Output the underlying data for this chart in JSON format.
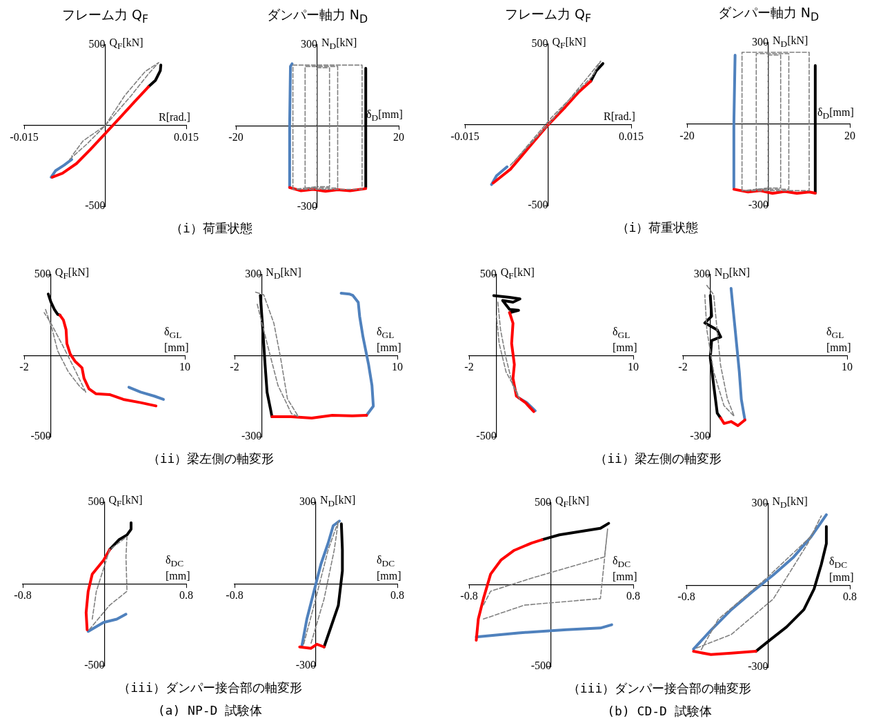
{
  "chart_data": [
    {
      "type": "line",
      "title": "フレーム力 Q$_{F}$",
      "xlabel": "R[rad.]",
      "ylabel": "Q$_{F}$[kN]",
      "xlim": [
        -0.015,
        0.015
      ],
      "ylim": [
        -500,
        500
      ],
      "xticks": [
        -0.015,
        0.015
      ],
      "yticks": [
        -500,
        500
      ],
      "annotations": [
        "（i）荷重状態"
      ],
      "series": [
        {
          "color": "#808080",
          "line_style": "dashed",
          "x": [
            -0.0066,
            -0.0034,
            0,
            0.0036,
            0.0074,
            0.0099,
            0.008,
            0.0048,
            0,
            -0.0041,
            -0.0062
          ],
          "values": [
            -210,
            -115,
            0,
            185,
            335,
            390,
            320,
            185,
            0,
            -95,
            -190
          ]
        },
        {
          "color": "#ff0000",
          "line_style": "solid",
          "x": [
            -0.0098,
            -0.0079,
            -0.0053,
            -0.0028,
            0,
            0.0029,
            0.0055,
            0.008
          ],
          "values": [
            -320,
            -295,
            -235,
            -150,
            -50,
            55,
            150,
            240
          ]
        },
        {
          "color": "#000000",
          "line_style": "solid",
          "x": [
            0.008,
            0.0093,
            0.0102,
            0.0103
          ],
          "values": [
            240,
            280,
            340,
            375
          ]
        },
        {
          "color": "#4f81bd",
          "line_style": "solid",
          "x": [
            -0.01,
            -0.0092,
            -0.0076,
            -0.0062
          ],
          "values": [
            -320,
            -280,
            -245,
            -210
          ]
        }
      ]
    },
    {
      "type": "line",
      "title": "ダンパー軸力 N$_{D}$",
      "xlabel": "δ$_{D}$[mm]",
      "ylabel": "N$_{D}$[kN]",
      "xlim": [
        -20,
        20
      ],
      "ylim": [
        -300,
        300
      ],
      "xticks": [
        -20,
        20
      ],
      "yticks": [
        -300,
        300
      ],
      "series": [
        {
          "color": "#808080",
          "line_style": "dashed",
          "x": [
            -6,
            -6,
            11,
            11,
            -6,
            -3,
            -3,
            5,
            5,
            -3,
            0,
            0,
            3,
            3,
            0
          ],
          "values": [
            -235,
            225,
            225,
            -235,
            -235,
            -230,
            220,
            220,
            -230,
            -230,
            -225,
            215,
            215,
            -225,
            -225
          ]
        },
        {
          "color": "#ff0000",
          "line_style": "solid",
          "x": [
            -6.8,
            -4,
            -1,
            2,
            5,
            8,
            11.9
          ],
          "values": [
            -228,
            -240,
            -235,
            -242,
            -236,
            -240,
            -232
          ]
        },
        {
          "color": "#000000",
          "line_style": "solid",
          "x": [
            11.9,
            11.9,
            11.9
          ],
          "values": [
            -228,
            0,
            213
          ]
        },
        {
          "color": "#4f81bd",
          "line_style": "solid",
          "x": [
            -6.8,
            -6.8,
            -6.6,
            -6.2
          ],
          "values": [
            -228,
            0,
            220,
            230
          ]
        }
      ]
    },
    {
      "type": "line",
      "title": "フレーム力 Q$_{F}$",
      "xlabel": "R[rad.]",
      "ylabel": "Q$_{F}$[kN]",
      "xlim": [
        -0.015,
        0.015
      ],
      "ylim": [
        -500,
        500
      ],
      "xticks": [
        -0.015,
        0.015
      ],
      "yticks": [
        -500,
        500
      ],
      "annotations": [
        "（i）荷重状態"
      ],
      "series": [
        {
          "color": "#808080",
          "line_style": "dashed",
          "x": [
            -0.0068,
            0,
            0.0068,
            0.0095,
            0.0081,
            0.0006,
            -0.0062
          ],
          "values": [
            -250,
            0,
            280,
            395,
            305,
            45,
            -230
          ]
        },
        {
          "color": "#ff0000",
          "line_style": "solid",
          "x": [
            -0.0099,
            -0.0068,
            -0.0031,
            0,
            0.0031,
            0.0056,
            0.0077
          ],
          "values": [
            -360,
            -275,
            -125,
            0,
            110,
            205,
            270
          ]
        },
        {
          "color": "#000000",
          "line_style": "solid",
          "x": [
            0.0077,
            0.0087,
            0.0099
          ],
          "values": [
            270,
            335,
            380
          ]
        },
        {
          "color": "#4f81bd",
          "line_style": "solid",
          "x": [
            -0.0102,
            -0.0093,
            -0.0074
          ],
          "values": [
            -370,
            -315,
            -260
          ]
        }
      ]
    },
    {
      "type": "line",
      "title": "ダンパー軸力 N$_{D}$",
      "xlabel": "δ$_{D}$[mm]",
      "ylabel": "N$_{D}$[kN]",
      "xlim": [
        -20,
        20
      ],
      "ylim": [
        -300,
        300
      ],
      "xticks": [
        -20,
        20
      ],
      "yticks": [
        -300,
        300
      ],
      "series": [
        {
          "color": "#808080",
          "line_style": "dashed",
          "x": [
            -6.5,
            -6.5,
            10,
            10,
            -6.5,
            -3,
            -3,
            5,
            5,
            -3,
            0,
            0,
            3,
            3,
            0
          ],
          "values": [
            -245,
            265,
            265,
            -245,
            -245,
            -240,
            260,
            260,
            -240,
            -240,
            -235,
            255,
            255,
            -235,
            -235
          ]
        },
        {
          "color": "#ff0000",
          "line_style": "solid",
          "x": [
            -8.5,
            -5,
            -2,
            1,
            4,
            7,
            10,
            11.5
          ],
          "values": [
            -240,
            -250,
            -245,
            -255,
            -248,
            -255,
            -250,
            -254
          ]
        },
        {
          "color": "#000000",
          "line_style": "solid",
          "x": [
            11.5,
            11.5,
            11.5
          ],
          "values": [
            -254,
            0,
            216
          ]
        },
        {
          "color": "#4f81bd",
          "line_style": "solid",
          "x": [
            -8.5,
            -8.5,
            -8.2
          ],
          "values": [
            -234,
            0,
            254
          ]
        }
      ]
    },
    {
      "type": "line",
      "xlabel": "δ$_{GL}$\n[mm]",
      "ylabel": "Q$_{F}$[kN]",
      "xlim": [
        -2,
        10
      ],
      "ylim": [
        -500,
        500
      ],
      "xticks": [
        -2,
        10
      ],
      "yticks": [
        -500,
        500
      ],
      "annotations": [
        "（ii）梁左側の軸変形"
      ],
      "series": [
        {
          "color": "#808080",
          "line_style": "dashed",
          "x": [
            -0.4,
            0.1,
            0.5,
            1.3,
            2.1,
            2.6,
            1.6,
            0.8,
            0,
            -0.5
          ],
          "values": [
            285,
            160,
            30,
            -100,
            -185,
            -225,
            -55,
            75,
            200,
            265
          ]
        },
        {
          "color": "#ff0000",
          "line_style": "solid",
          "x": [
            0.67,
            0.93,
            1.13,
            1.19,
            1.44,
            1.8,
            2.32,
            2.47,
            2.84,
            3.35,
            4.38,
            5.41,
            6.7,
            7.84
          ],
          "values": [
            250,
            220,
            160,
            75,
            10,
            -35,
            -75,
            -140,
            -205,
            -235,
            -240,
            -270,
            -290,
            -310
          ]
        },
        {
          "color": "#000000",
          "line_style": "solid",
          "x": [
            -0.2,
            0,
            0.26,
            0.5,
            0.67
          ],
          "values": [
            380,
            330,
            285,
            255,
            250
          ]
        },
        {
          "color": "#4f81bd",
          "line_style": "solid",
          "x": [
            5.82,
            6.7,
            7.73,
            8.4
          ],
          "values": [
            -195,
            -225,
            -250,
            -270
          ]
        }
      ]
    },
    {
      "type": "line",
      "xlabel": "δ$_{GL}$\n[mm]",
      "ylabel": "N$_{D}$[kN]",
      "xlim": [
        -2,
        10
      ],
      "ylim": [
        -300,
        300
      ],
      "xticks": [
        -2,
        10
      ],
      "yticks": [
        -300,
        300
      ],
      "series": [
        {
          "color": "#808080",
          "line_style": "dashed",
          "x": [
            -0.45,
            0.15,
            0.9,
            1.4,
            1.9,
            2.7,
            2.2,
            1.2,
            0.4,
            -0.35
          ],
          "values": [
            235,
            225,
            120,
            -10,
            -160,
            -225,
            -215,
            -110,
            45,
            195
          ]
        },
        {
          "color": "#ff0000",
          "line_style": "solid",
          "x": [
            0.76,
            2.17,
            3.69,
            5.2,
            6.72,
            7.73
          ],
          "values": [
            -226,
            -226,
            -231,
            -221,
            -223,
            -221
          ]
        },
        {
          "color": "#000000",
          "line_style": "solid",
          "x": [
            -0.1,
            0.05,
            0.25,
            0.4,
            0.66,
            0.76
          ],
          "values": [
            223,
            121,
            -33,
            -136,
            -200,
            -226
          ]
        },
        {
          "color": "#4f81bd",
          "line_style": "solid",
          "x": [
            7.73,
            8.23,
            8.13,
            7.88,
            7.47,
            7.22,
            7.12,
            6.72,
            6.46,
            5.86
          ],
          "values": [
            -221,
            -187,
            -110,
            -33,
            69,
            146,
            197,
            223,
            228,
            231
          ]
        }
      ]
    },
    {
      "type": "line",
      "xlabel": "δ$_{GL}$\n[mm]",
      "ylabel": "Q$_{F}$[kN]",
      "xlim": [
        -2,
        10
      ],
      "ylim": [
        -500,
        500
      ],
      "xticks": [
        -2,
        10
      ],
      "yticks": [
        -500,
        500
      ],
      "annotations": [
        "（ii）梁左側の軸変形"
      ],
      "series": [
        {
          "color": "#808080",
          "line_style": "dashed",
          "x": [
            0.1,
            0.3,
            0.7,
            1.2,
            1.7,
            1.5,
            0.7,
            0.2,
            0
          ],
          "values": [
            330,
            160,
            -15,
            -185,
            -270,
            -225,
            -100,
            75,
            245
          ]
        },
        {
          "color": "#ff0000",
          "line_style": "solid",
          "x": [
            0.96,
            1.21,
            1.11,
            1.31,
            1.21,
            1.46,
            2.12,
            2.73
          ],
          "values": [
            265,
            200,
            75,
            -55,
            -140,
            -250,
            -290,
            -345
          ]
        },
        {
          "color": "#000000",
          "line_style": "solid",
          "x": [
            -0.2,
            0.96,
            1.72,
            1.21,
            0.45,
            0.96,
            1.62,
            0.96
          ],
          "values": [
            370,
            360,
            350,
            330,
            340,
            285,
            280,
            265
          ]
        },
        {
          "color": "#4f81bd",
          "line_style": "solid",
          "x": [
            1.62,
            2.22,
            2.83
          ],
          "values": [
            -260,
            -290,
            -340
          ]
        }
      ]
    },
    {
      "type": "line",
      "xlabel": "δ$_{GL}$\n[mm]",
      "ylabel": "N$_{D}$[kN]",
      "xlim": [
        -2,
        10
      ],
      "ylim": [
        -300,
        300
      ],
      "xticks": [
        -2,
        10
      ],
      "yticks": [
        -300,
        300
      ],
      "series": [
        {
          "color": "#808080",
          "line_style": "dashed",
          "x": [
            -0.25,
            0.25,
            0.5,
            0.75,
            1.25,
            1.75,
            1,
            0.25,
            -0.25,
            -0.4
          ],
          "values": [
            260,
            225,
            95,
            -35,
            -160,
            -225,
            -185,
            -60,
            95,
            225
          ]
        },
        {
          "color": "#ff0000",
          "line_style": "solid",
          "x": [
            0.76,
            1.01,
            1.52,
            2.02,
            2.53
          ],
          "values": [
            -231,
            -251,
            -244,
            -259,
            -238
          ]
        },
        {
          "color": "#000000",
          "line_style": "solid",
          "x": [
            0,
            0.1,
            -0.4,
            0.51,
            0.76,
            0.1,
            0,
            0.25,
            0.51,
            0.76
          ],
          "values": [
            223,
            146,
            121,
            95,
            69,
            56,
            -8,
            -110,
            -213,
            -231
          ]
        },
        {
          "color": "#4f81bd",
          "line_style": "solid",
          "x": [
            2.53,
            2.27,
            2.12,
            1.92,
            1.77,
            1.62,
            1.52
          ],
          "values": [
            -238,
            -162,
            -59,
            44,
            121,
            197,
            249
          ]
        }
      ]
    },
    {
      "type": "line",
      "xlabel": "δ$_{DC}$\n[mm]",
      "ylabel": "Q$_{F}$[kN]",
      "xlim": [
        -0.8,
        0.8
      ],
      "ylim": [
        -500,
        500
      ],
      "xticks": [
        -0.8,
        0.8
      ],
      "yticks": [
        -500,
        500
      ],
      "annotations": [
        "（iii）ダンパー接合部の軸変形",
        "(a) NP-D 試験体"
      ],
      "series": [
        {
          "color": "#808080",
          "line_style": "dashed",
          "x": [
            -0.15,
            0.05,
            0.22,
            0.21,
            0.22,
            0.05,
            -0.08,
            -0.12
          ],
          "values": [
            -280,
            -130,
            -45,
            165,
            290,
            210,
            -45,
            -215
          ]
        },
        {
          "color": "#ff0000",
          "line_style": "solid",
          "x": [
            0.05,
            -0.01,
            -0.12,
            -0.16,
            -0.18,
            -0.17
          ],
          "values": [
            210,
            145,
            60,
            -45,
            -175,
            -280
          ]
        },
        {
          "color": "#000000",
          "line_style": "solid",
          "x": [
            0.05,
            0.14,
            0.22,
            0.26,
            0.26
          ],
          "values": [
            210,
            270,
            300,
            335,
            375
          ]
        },
        {
          "color": "#4f81bd",
          "line_style": "solid",
          "x": [
            -0.16,
            -0.01,
            0.12,
            0.21
          ],
          "values": [
            -290,
            -235,
            -215,
            -185
          ]
        }
      ]
    },
    {
      "type": "line",
      "xlabel": "δ$_{DC}$\n[mm]",
      "ylabel": "N$_{D}$[kN]",
      "xlim": [
        -0.8,
        0.8
      ],
      "ylim": [
        -300,
        300
      ],
      "xticks": [
        -0.8,
        0.8
      ],
      "yticks": [
        -300,
        300
      ],
      "series": [
        {
          "color": "#808080",
          "line_style": "dashed",
          "x": [
            -0.12,
            -0.02,
            0.12,
            0.22,
            0.18,
            0.08,
            -0.05
          ],
          "values": [
            -220,
            -80,
            125,
            230,
            125,
            -55,
            -220
          ]
        },
        {
          "color": "#ff0000",
          "line_style": "solid",
          "x": [
            -0.16,
            -0.05,
            0.01,
            0.08
          ],
          "values": [
            -231,
            -236,
            -221,
            -231
          ]
        },
        {
          "color": "#000000",
          "line_style": "solid",
          "x": [
            0.25,
            0.26,
            0.26,
            0.22,
            0.15,
            0.08
          ],
          "values": [
            221,
            125,
            48,
            -79,
            -155,
            -231
          ]
        },
        {
          "color": "#4f81bd",
          "line_style": "solid",
          "x": [
            -0.14,
            -0.09,
            -0.02,
            0.05,
            0.12,
            0.17,
            0.23
          ],
          "values": [
            -231,
            -130,
            -28,
            74,
            150,
            214,
            231
          ]
        }
      ]
    },
    {
      "type": "line",
      "xlabel": "δ$_{DC}$\n[mm]",
      "ylabel": "Q$_{F}$[kN]",
      "xlim": [
        -0.8,
        0.8
      ],
      "ylim": [
        -500,
        500
      ],
      "xticks": [
        -0.8,
        0.8
      ],
      "yticks": [
        -500,
        500
      ],
      "annotations": [
        "（iii）ダンパー接合部の軸変形",
        "(b) CD-D 試験体"
      ],
      "series": [
        {
          "color": "#808080",
          "line_style": "dashed",
          "x": [
            -0.66,
            -0.26,
            0.48,
            0.55,
            0.52,
            -0.19,
            -0.59,
            -0.66
          ],
          "values": [
            -210,
            -125,
            -85,
            340,
            170,
            40,
            -40,
            -125
          ]
        },
        {
          "color": "#ff0000",
          "line_style": "solid",
          "x": [
            -0.73,
            -0.71,
            -0.66,
            -0.59,
            -0.49,
            -0.36,
            -0.19,
            -0.09
          ],
          "values": [
            -340,
            -210,
            -85,
            65,
            150,
            210,
            255,
            275
          ]
        },
        {
          "color": "#000000",
          "line_style": "solid",
          "x": [
            -0.09,
            0.08,
            0.28,
            0.48,
            0.56
          ],
          "values": [
            275,
            305,
            325,
            345,
            375
          ]
        },
        {
          "color": "#4f81bd",
          "line_style": "solid",
          "x": [
            -0.73,
            -0.32,
            0.15,
            0.48,
            0.59
          ],
          "values": [
            -320,
            -295,
            -275,
            -265,
            -245
          ]
        }
      ]
    },
    {
      "type": "line",
      "xlabel": "δ$_{DC}$\n[mm]",
      "ylabel": "N$_{D}$[kN]",
      "xlim": [
        -0.8,
        0.8
      ],
      "ylim": [
        -300,
        300
      ],
      "xticks": [
        -0.8,
        0.8
      ],
      "yticks": [
        -300,
        300
      ],
      "series": [
        {
          "color": "#808080",
          "line_style": "dashed",
          "x": [
            -0.7,
            -0.36,
            0.05,
            0.39,
            0.52,
            0.42,
            -0.02,
            -0.49,
            -0.66
          ],
          "values": [
            -230,
            -180,
            -50,
            155,
            255,
            180,
            25,
            -125,
            -240
          ]
        },
        {
          "color": "#ff0000",
          "line_style": "solid",
          "x": [
            -0.73,
            -0.56,
            -0.36,
            -0.12
          ],
          "values": [
            -242,
            -254,
            -249,
            -242
          ]
        },
        {
          "color": "#000000",
          "line_style": "solid",
          "x": [
            -0.12,
            0.01,
            0.18,
            0.35,
            0.45,
            0.52,
            0.57,
            0.57
          ],
          "values": [
            -242,
            -203,
            -153,
            -89,
            -13,
            76,
            153,
            216
          ]
        },
        {
          "color": "#4f81bd",
          "line_style": "solid",
          "x": [
            -0.73,
            -0.56,
            -0.36,
            -0.16,
            0.05,
            0.25,
            0.42,
            0.57
          ],
          "values": [
            -234,
            -165,
            -89,
            -25,
            38,
            104,
            178,
            259
          ]
        }
      ]
    }
  ]
}
